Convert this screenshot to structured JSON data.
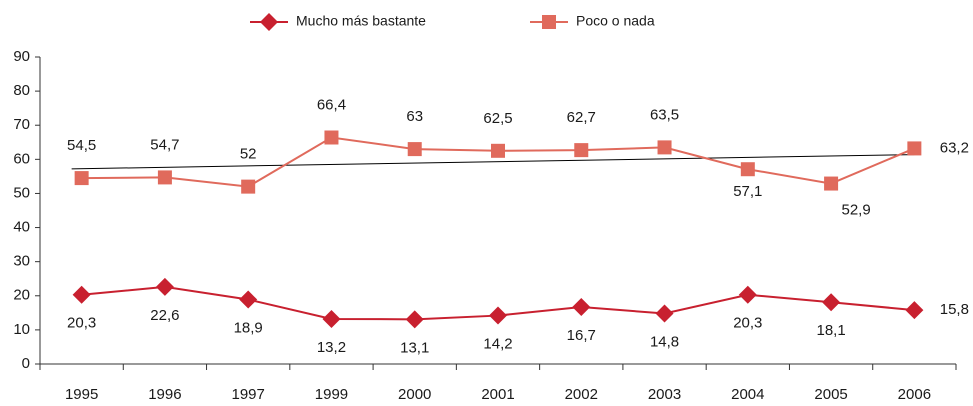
{
  "chart_data": {
    "type": "line",
    "categories": [
      "1995",
      "1996",
      "1997",
      "1999",
      "2000",
      "2001",
      "2002",
      "2003",
      "2004",
      "2005",
      "2006"
    ],
    "series": [
      {
        "name": "Mucho más bastante",
        "color": "#c8202f",
        "marker": "diamond",
        "values": [
          20.3,
          22.6,
          18.9,
          13.2,
          13.1,
          14.2,
          16.7,
          14.8,
          20.3,
          18.1,
          15.8
        ],
        "value_labels": [
          "20,3",
          "22,6",
          "18,9",
          "13,2",
          "13,1",
          "14,2",
          "16,7",
          "14,8",
          "20,3",
          "18,1",
          "15,8"
        ]
      },
      {
        "name": "Poco o nada",
        "color": "#e06a5c",
        "marker": "square",
        "values": [
          54.5,
          54.7,
          52,
          66.4,
          63,
          62.5,
          62.7,
          63.5,
          57.1,
          52.9,
          63.2
        ],
        "value_labels": [
          "54,5",
          "54,7",
          "52",
          "66,4",
          "63",
          "62,5",
          "62,7",
          "63,5",
          "57,1",
          "52,9",
          "63,2"
        ],
        "trendline": true
      }
    ],
    "ylim": [
      0,
      90
    ],
    "yticks": [
      0,
      10,
      20,
      30,
      40,
      50,
      60,
      70,
      80,
      90
    ],
    "legend": "top"
  }
}
